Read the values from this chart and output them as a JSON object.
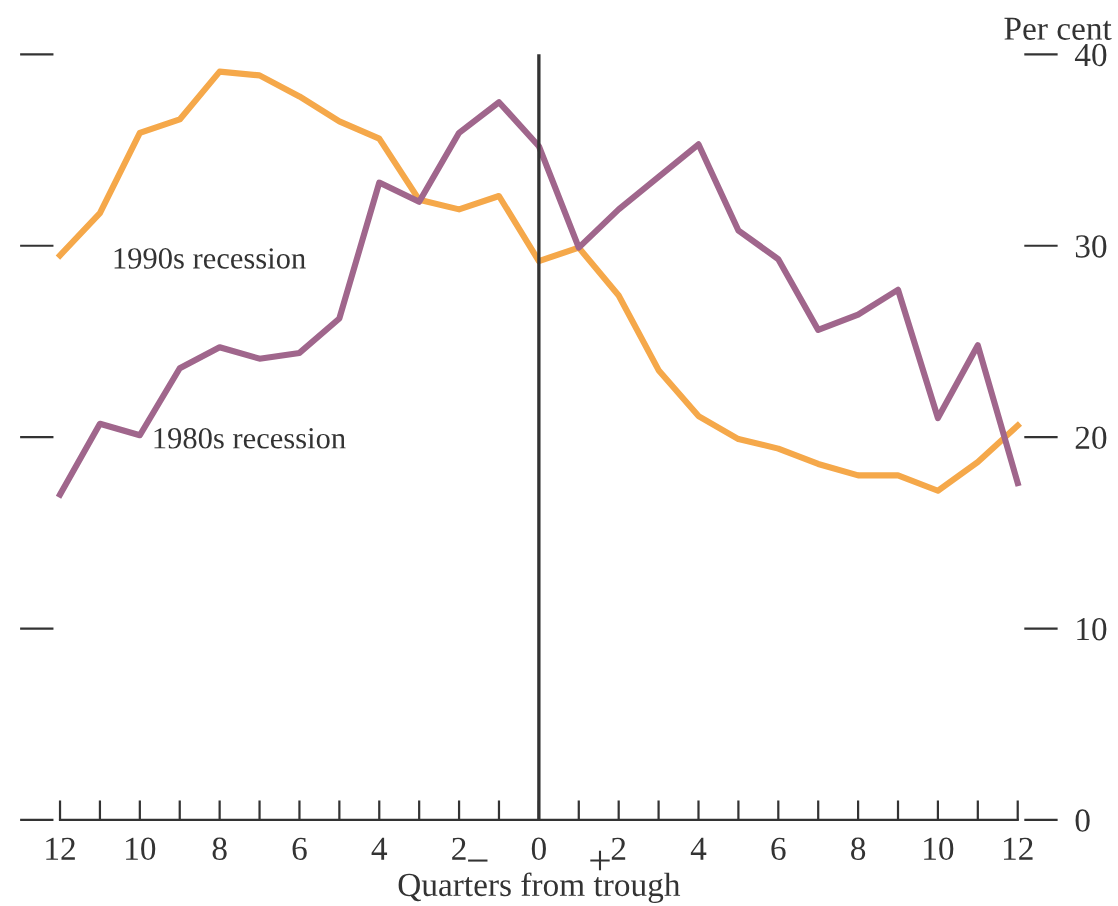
{
  "chart_data": {
    "type": "line",
    "xlabel": "Quarters from trough",
    "ylabel": "Per cent",
    "x": [
      -12,
      -11,
      -10,
      -9,
      -8,
      -7,
      -6,
      -5,
      -4,
      -3,
      -2,
      -1,
      0,
      1,
      2,
      3,
      4,
      5,
      6,
      7,
      8,
      9,
      10,
      11,
      12
    ],
    "series": [
      {
        "name": "1990s recession",
        "color": "#f5a84a",
        "values": [
          29.5,
          31.7,
          35.9,
          36.6,
          39.1,
          38.9,
          37.8,
          36.5,
          35.6,
          32.4,
          31.9,
          32.6,
          29.2,
          29.9,
          27.4,
          23.5,
          21.1,
          19.9,
          19.4,
          18.6,
          18.0,
          18.0,
          17.2,
          18.7,
          20.6
        ]
      },
      {
        "name": "1980s recession",
        "color": "#a0668c",
        "values": [
          17.0,
          20.7,
          20.1,
          23.6,
          24.7,
          24.1,
          24.4,
          26.2,
          33.3,
          32.3,
          35.9,
          37.5,
          35.2,
          29.9,
          31.9,
          33.6,
          35.3,
          30.8,
          29.3,
          25.6,
          26.4,
          27.7,
          21.0,
          24.8,
          17.6
        ]
      }
    ],
    "xlim": [
      -13,
      13
    ],
    "ylim": [
      0,
      40
    ],
    "xticks": [
      {
        "value": -12,
        "label": "12"
      },
      {
        "value": -11,
        "label": null
      },
      {
        "value": -10,
        "label": "10"
      },
      {
        "value": -9,
        "label": null
      },
      {
        "value": -8,
        "label": "8"
      },
      {
        "value": -7,
        "label": null
      },
      {
        "value": -6,
        "label": "6"
      },
      {
        "value": -5,
        "label": null
      },
      {
        "value": -4,
        "label": "4"
      },
      {
        "value": -3,
        "label": null
      },
      {
        "value": -2,
        "label": "2"
      },
      {
        "value": -1,
        "label": null
      },
      0,
      {
        "value": 1,
        "label": null
      },
      2,
      {
        "value": 3,
        "label": null
      },
      4,
      {
        "value": 5,
        "label": null
      },
      6,
      {
        "value": 7,
        "label": null
      },
      8,
      {
        "value": 9,
        "label": null
      },
      10,
      {
        "value": 11,
        "label": null
      },
      12
    ],
    "yticks": [
      0,
      10,
      20,
      30,
      40
    ],
    "ref_lines": [
      {
        "axis": "x",
        "value": 0,
        "color": "#333333"
      }
    ],
    "annotations": [
      "−",
      "+"
    ],
    "grid": false,
    "legend": false,
    "marker": "none",
    "line_style": "solid"
  }
}
